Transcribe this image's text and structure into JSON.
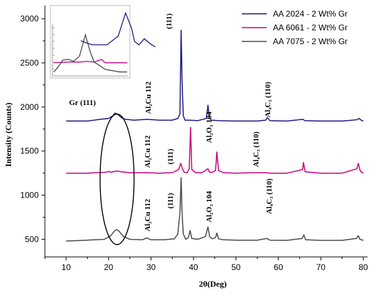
{
  "chart_data": {
    "type": "line",
    "xlabel": "2θ(Deg)",
    "ylabel": "Intensity (Counts)",
    "xlim": [
      5,
      81
    ],
    "ylim": [
      300,
      3150
    ],
    "xticks": [
      10,
      20,
      30,
      40,
      50,
      60,
      70,
      80
    ],
    "yticks": [
      500,
      1000,
      1500,
      2000,
      2500,
      3000
    ],
    "legend_position": "top-right",
    "series": [
      {
        "name": "AA 2024 - 2 Wt% Gr",
        "color": "#1a1a80",
        "x": [
          10,
          15,
          18,
          20,
          21,
          21.5,
          22,
          22.5,
          23,
          24,
          26,
          29,
          32,
          35,
          36.3,
          36.8,
          37.1,
          37.3,
          37.6,
          38,
          39,
          41,
          43,
          43.4,
          43.7,
          44.2,
          46,
          50,
          55,
          57,
          57.4,
          58,
          62,
          65.8,
          66.2,
          70,
          75,
          78.5,
          79,
          79.5,
          80
        ],
        "y": [
          1840,
          1840,
          1860,
          1870,
          1900,
          1930,
          1920,
          1900,
          1880,
          1860,
          1850,
          1860,
          1850,
          1850,
          1870,
          1920,
          2870,
          2300,
          1900,
          1850,
          1850,
          1845,
          1870,
          2020,
          1880,
          1850,
          1845,
          1840,
          1840,
          1850,
          1880,
          1845,
          1840,
          1860,
          1845,
          1840,
          1840,
          1855,
          1870,
          1850,
          1840
        ]
      },
      {
        "name": "AA 6061 - 2 Wt% Gr",
        "color": "#c8007d",
        "x": [
          10,
          15,
          19.5,
          20,
          20.5,
          22,
          23,
          25,
          29,
          32,
          35,
          36.5,
          37,
          37.4,
          37.8,
          38.5,
          39,
          39.3,
          39.6,
          40.5,
          42,
          43.4,
          43.8,
          44.5,
          45.2,
          45.5,
          45.9,
          47,
          50,
          54.5,
          57,
          58,
          62,
          65.7,
          65.9,
          66.3,
          70,
          75,
          78.5,
          78.8,
          79.3,
          80
        ],
        "y": [
          1250,
          1250,
          1260,
          1270,
          1260,
          1275,
          1265,
          1255,
          1255,
          1250,
          1255,
          1290,
          1360,
          1300,
          1260,
          1255,
          1300,
          1770,
          1290,
          1255,
          1255,
          1300,
          1260,
          1260,
          1280,
          1490,
          1280,
          1255,
          1250,
          1255,
          1255,
          1250,
          1250,
          1290,
          1370,
          1265,
          1250,
          1250,
          1300,
          1360,
          1270,
          1250
        ]
      },
      {
        "name": "AA 7075 - 2 Wt% Gr",
        "color": "#4a4a4a",
        "x": [
          10,
          15,
          19,
          20.5,
          21.5,
          22,
          22.5,
          23.5,
          25,
          28,
          29,
          30,
          33,
          35.5,
          36.3,
          36.8,
          37.1,
          37.3,
          37.6,
          38.2,
          38.8,
          39.2,
          39.6,
          41,
          42.8,
          43.4,
          43.8,
          44.4,
          45.2,
          45.5,
          45.9,
          47,
          50,
          55,
          57.3,
          58,
          62,
          65.6,
          66,
          66.4,
          70,
          75,
          78.4,
          78.8,
          79.2,
          80
        ],
        "y": [
          480,
          490,
          500,
          540,
          600,
          610,
          590,
          530,
          500,
          495,
          515,
          495,
          495,
          505,
          560,
          800,
          1200,
          800,
          560,
          500,
          520,
          600,
          510,
          500,
          530,
          640,
          530,
          505,
          520,
          570,
          505,
          495,
          490,
          490,
          510,
          490,
          488,
          510,
          550,
          495,
          488,
          488,
          510,
          540,
          500,
          488
        ]
      }
    ],
    "annotations": [
      {
        "text": "(111)",
        "x": 37.1,
        "y": 2870
      },
      {
        "text": "Gr (111)",
        "x": 22,
        "y": 1930
      },
      {
        "text": "Al₂Cu 112",
        "x": 28.6,
        "y": 1920
      },
      {
        "text": "Al₄C₃ (110)",
        "x": 57.4,
        "y": 1880
      },
      {
        "text": "Al₂Cu 112",
        "x": 28.6,
        "y": 1300
      },
      {
        "text": "(111)",
        "x": 35.8,
        "y": 1300
      },
      {
        "text": "Al₂O₃ 104",
        "x": 43.6,
        "y": 1770
      },
      {
        "text": "Al₄C₃ (110)",
        "x": 54.8,
        "y": 1300
      },
      {
        "text": "Al₂Cu 112",
        "x": 28.6,
        "y": 560
      },
      {
        "text": "(111)",
        "x": 35.8,
        "y": 1200
      },
      {
        "text": "Al₂O₃ 104",
        "x": 43.6,
        "y": 640
      },
      {
        "text": "Al₄C₃ (110)",
        "x": 57.4,
        "y": 540
      }
    ],
    "inset": {
      "series": [
        {
          "color": "#1a1a80",
          "x": [
            0,
            0.15,
            0.35,
            0.5,
            0.6,
            0.68,
            0.72,
            0.78,
            0.85,
            0.95,
            1
          ],
          "y": [
            0.53,
            0.47,
            0.47,
            0.6,
            0.95,
            0.72,
            0.52,
            0.47,
            0.56,
            0.47,
            0.44
          ]
        },
        {
          "color": "#c8007d",
          "x": [
            0,
            0.2,
            0.35,
            0.45,
            0.55,
            0.65,
            0.7,
            0.8,
            0.9,
            1
          ],
          "y": [
            0.2,
            0.21,
            0.21,
            0.22,
            0.21,
            0.25,
            0.2,
            0.2,
            0.2,
            0.2
          ]
        },
        {
          "color": "#4a4a4a",
          "x": [
            0,
            0.06,
            0.12,
            0.2,
            0.27,
            0.35,
            0.43,
            0.5,
            0.55,
            0.62,
            0.7,
            0.8,
            0.9,
            1
          ],
          "y": [
            0.06,
            0.14,
            0.24,
            0.25,
            0.22,
            0.3,
            0.62,
            0.35,
            0.21,
            0.16,
            0.1,
            0.08,
            0.06,
            0.06
          ]
        }
      ]
    },
    "highlight": {
      "shape": "ellipse",
      "x": 22,
      "y": 1180,
      "width_data": 8,
      "height_data": 1480
    }
  }
}
